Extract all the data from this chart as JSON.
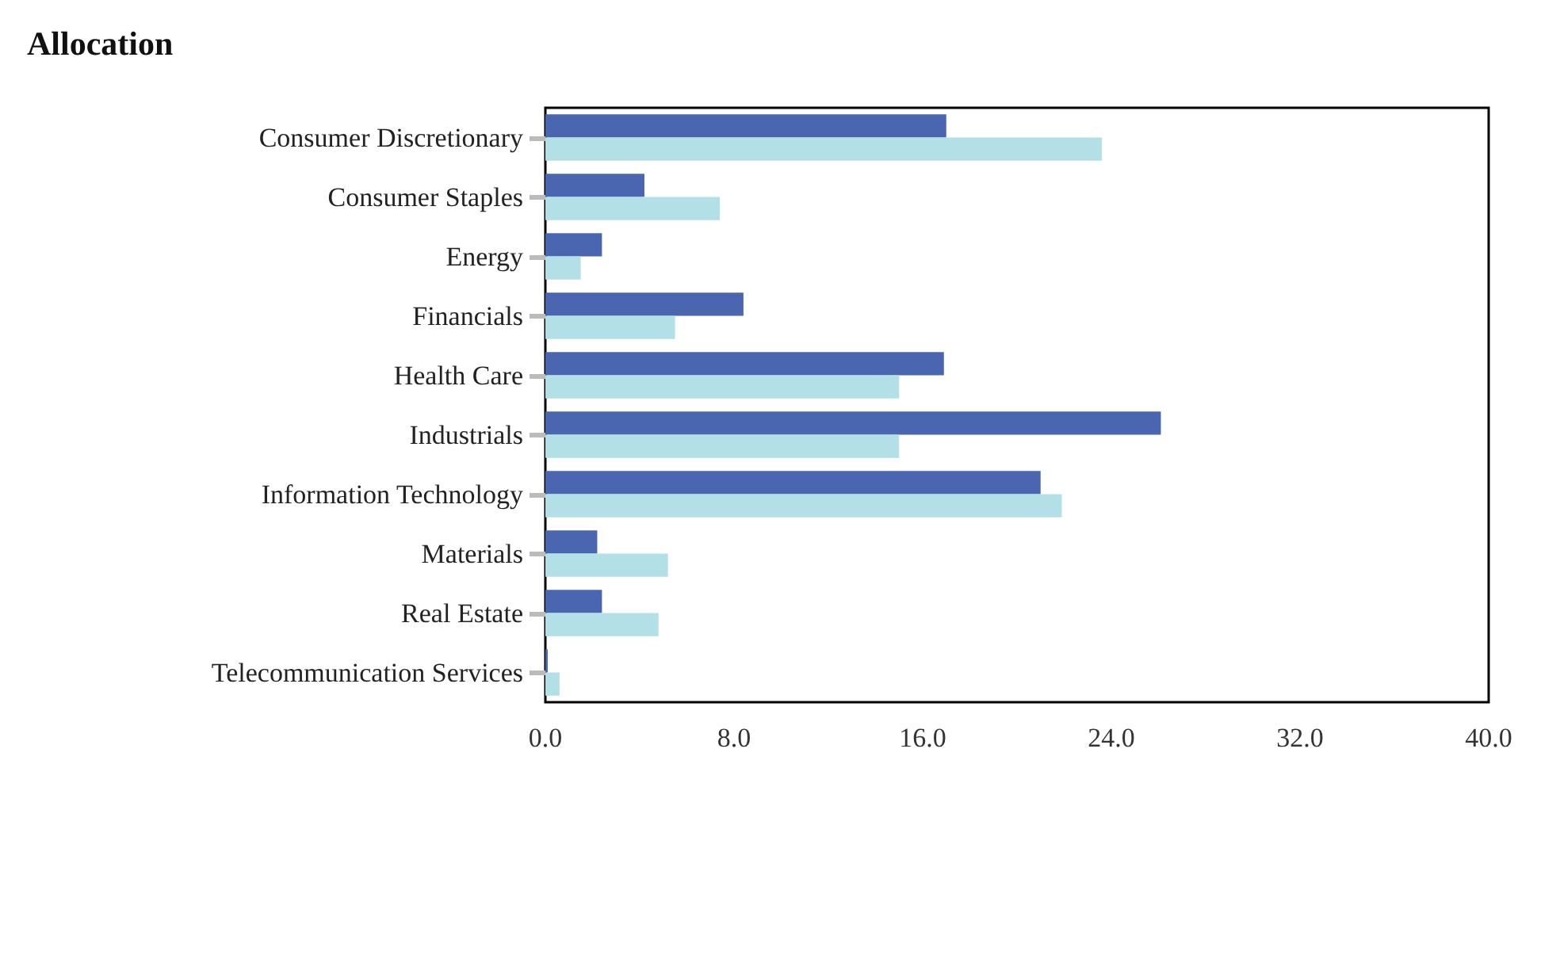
{
  "chart_data": {
    "type": "bar",
    "title": "Allocation",
    "orientation": "horizontal",
    "categories": [
      "Consumer Discretionary",
      "Consumer Staples",
      "Energy",
      "Financials",
      "Health Care",
      "Industrials",
      "Information Technology",
      "Materials",
      "Real Estate",
      "Telecommunication Services"
    ],
    "series": [
      {
        "color": "#4a66b0",
        "values": [
          17.0,
          4.2,
          2.4,
          8.4,
          16.9,
          26.1,
          21.0,
          2.2,
          2.4,
          0.1
        ]
      },
      {
        "color": "#b3e0e6",
        "values": [
          23.6,
          7.4,
          1.5,
          5.5,
          15.0,
          15.0,
          21.9,
          5.2,
          4.8,
          0.6
        ]
      }
    ],
    "xlim": [
      0,
      40
    ],
    "xticks": [
      {
        "value": 0,
        "label": "0.0"
      },
      {
        "value": 8,
        "label": "8.0"
      },
      {
        "value": 16,
        "label": "16.0"
      },
      {
        "value": 24,
        "label": "24.0"
      },
      {
        "value": 32,
        "label": "32.0"
      },
      {
        "value": 40,
        "label": "40.0"
      }
    ],
    "grid": false
  }
}
